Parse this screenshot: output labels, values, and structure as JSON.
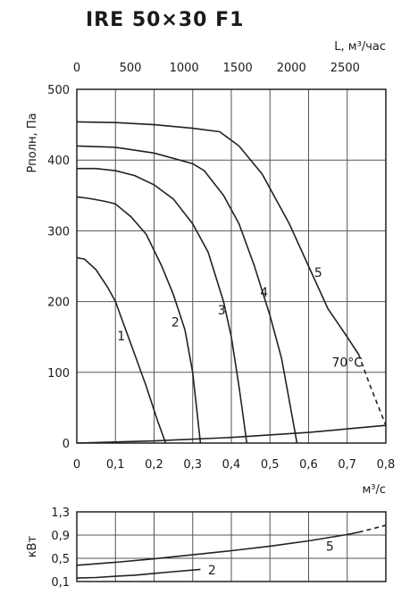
{
  "title": "IRE 50×30 F1",
  "chart_data": [
    {
      "type": "line",
      "title": "IRE 50×30 F1",
      "xlabel": "м³/с",
      "ylabel": "Pполн, Па",
      "x2label": "L, м³/час",
      "xlim": [
        0,
        0.8
      ],
      "ylim": [
        0,
        500
      ],
      "x2lim": [
        0,
        2880
      ],
      "x_ticks": [
        "0",
        "0,1",
        "0,2",
        "0,3",
        "0,4",
        "0,5",
        "0,6",
        "0,7",
        "0,8"
      ],
      "x2_ticks": [
        "0",
        "500",
        "1000",
        "1500",
        "2000",
        "2500"
      ],
      "y_ticks": [
        "0",
        "100",
        "200",
        "300",
        "400",
        "500"
      ],
      "grid": true,
      "annotation": "70°C",
      "series": [
        {
          "name": "1",
          "x": [
            0,
            0.02,
            0.05,
            0.08,
            0.1,
            0.12,
            0.15,
            0.18,
            0.21,
            0.23
          ],
          "y": [
            262,
            260,
            245,
            220,
            200,
            170,
            125,
            80,
            30,
            0
          ]
        },
        {
          "name": "2",
          "x": [
            0,
            0.03,
            0.07,
            0.1,
            0.14,
            0.18,
            0.22,
            0.25,
            0.28,
            0.3,
            0.31,
            0.32
          ],
          "y": [
            348,
            346,
            342,
            338,
            320,
            295,
            250,
            210,
            160,
            100,
            50,
            0
          ]
        },
        {
          "name": "3",
          "x": [
            0,
            0.05,
            0.1,
            0.15,
            0.2,
            0.25,
            0.3,
            0.34,
            0.38,
            0.4,
            0.42,
            0.43,
            0.44
          ],
          "y": [
            388,
            388,
            385,
            378,
            365,
            345,
            310,
            270,
            200,
            150,
            80,
            40,
            0
          ]
        },
        {
          "name": "4",
          "x": [
            0,
            0.1,
            0.2,
            0.3,
            0.33,
            0.38,
            0.42,
            0.46,
            0.5,
            0.53,
            0.55,
            0.57
          ],
          "y": [
            420,
            418,
            410,
            395,
            385,
            350,
            310,
            250,
            180,
            120,
            60,
            0
          ]
        },
        {
          "name": "5",
          "x": [
            0,
            0.1,
            0.2,
            0.3,
            0.37,
            0.42,
            0.48,
            0.55,
            0.6,
            0.65,
            0.7,
            0.73
          ],
          "y": [
            454,
            453,
            450,
            445,
            440,
            420,
            380,
            310,
            250,
            190,
            150,
            125
          ]
        },
        {
          "name": "5",
          "dashed": true,
          "x": [
            0.73,
            0.76,
            0.8
          ],
          "y": [
            125,
            80,
            25
          ]
        },
        {
          "name": "",
          "x": [
            0,
            0.2,
            0.4,
            0.6,
            0.8
          ],
          "y": [
            0,
            3,
            8,
            15,
            25
          ]
        }
      ],
      "labels": [
        {
          "text": "1",
          "x": 0.115,
          "y": 145
        },
        {
          "text": "2",
          "x": 0.255,
          "y": 165
        },
        {
          "text": "3",
          "x": 0.375,
          "y": 182
        },
        {
          "text": "4",
          "x": 0.485,
          "y": 207
        },
        {
          "text": "5",
          "x": 0.625,
          "y": 235
        }
      ]
    },
    {
      "type": "line",
      "ylabel": "кВт",
      "xlim": [
        0,
        0.8
      ],
      "ylim": [
        0.1,
        1.3
      ],
      "y_ticks": [
        "0,1",
        "0,5",
        "0,9",
        "1,3"
      ],
      "y_tick_values": [
        0.1,
        0.5,
        0.9,
        1.3
      ],
      "grid": true,
      "series": [
        {
          "name": "5",
          "x": [
            0,
            0.1,
            0.2,
            0.3,
            0.4,
            0.5,
            0.6,
            0.7,
            0.73
          ],
          "y": [
            0.38,
            0.43,
            0.49,
            0.56,
            0.63,
            0.71,
            0.8,
            0.91,
            0.95
          ]
        },
        {
          "name": "5",
          "dashed": true,
          "x": [
            0.73,
            0.76,
            0.8
          ],
          "y": [
            0.95,
            1.0,
            1.07
          ]
        },
        {
          "name": "2",
          "x": [
            0,
            0.05,
            0.1,
            0.15,
            0.2,
            0.25,
            0.32
          ],
          "y": [
            0.16,
            0.17,
            0.19,
            0.21,
            0.24,
            0.27,
            0.31
          ]
        }
      ],
      "labels": [
        {
          "text": "5",
          "x": 0.655,
          "y": 0.63
        },
        {
          "text": "2",
          "x": 0.35,
          "y": 0.22
        }
      ]
    }
  ]
}
